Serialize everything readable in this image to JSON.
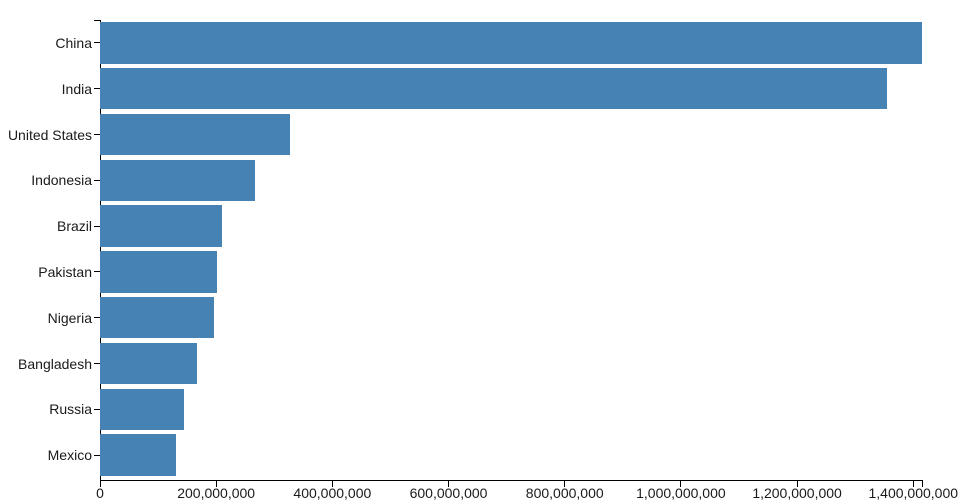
{
  "chart_data": {
    "type": "bar",
    "orientation": "horizontal",
    "title": "",
    "xlabel": "",
    "ylabel": "",
    "categories": [
      "China",
      "India",
      "United States",
      "Indonesia",
      "Brazil",
      "Pakistan",
      "Nigeria",
      "Bangladesh",
      "Russia",
      "Mexico"
    ],
    "values": [
      1415045928,
      1354051854,
      326766748,
      266794980,
      210867954,
      200813818,
      195875237,
      166368149,
      143964709,
      130759074
    ],
    "xlim": [
      0,
      1415045928
    ],
    "x_ticks": [
      0,
      200000000,
      400000000,
      600000000,
      800000000,
      1000000000,
      1200000000,
      1400000000
    ],
    "x_tick_labels": [
      "0",
      "200,000,000",
      "400,000,000",
      "600,000,000",
      "800,000,000",
      "1,000,000,000",
      "1,200,000,000",
      "1,400,000,000"
    ],
    "bar_color": "#4682b4",
    "axis_color": "#000000",
    "text_color": "#1a1a1a",
    "background_color": "#ffffff",
    "grid": false,
    "legend": false
  }
}
